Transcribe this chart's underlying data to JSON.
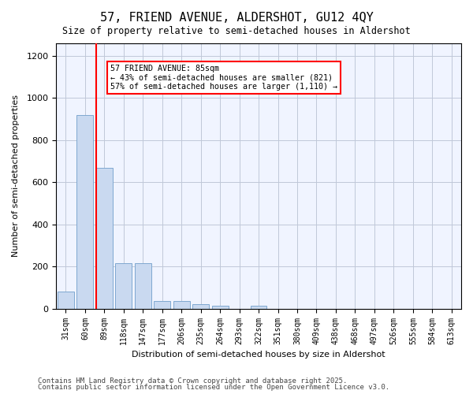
{
  "title_line1": "57, FRIEND AVENUE, ALDERSHOT, GU12 4QY",
  "title_line2": "Size of property relative to semi-detached houses in Aldershot",
  "xlabel": "Distribution of semi-detached houses by size in Aldershot",
  "ylabel": "Number of semi-detached properties",
  "categories": [
    "31sqm",
    "60sqm",
    "89sqm",
    "118sqm",
    "147sqm",
    "177sqm",
    "206sqm",
    "235sqm",
    "264sqm",
    "293sqm",
    "322sqm",
    "351sqm",
    "380sqm",
    "409sqm",
    "438sqm",
    "468sqm",
    "497sqm",
    "526sqm",
    "555sqm",
    "584sqm",
    "613sqm"
  ],
  "values": [
    80,
    920,
    670,
    215,
    215,
    35,
    35,
    20,
    13,
    0,
    13,
    0,
    0,
    0,
    0,
    0,
    0,
    0,
    0,
    0,
    0
  ],
  "bar_color": "#c9d9f0",
  "bar_edge_color": "#7fa8d0",
  "red_line_x": 2,
  "property_size": "85sqm",
  "pct_smaller": 43,
  "count_smaller": 821,
  "pct_larger": 57,
  "count_larger": 1110,
  "annotation_text": "57 FRIEND AVENUE: 85sqm\n← 43% of semi-detached houses are smaller (821)\n57% of semi-detached houses are larger (1,110) →",
  "ylim": [
    0,
    1260
  ],
  "yticks": [
    0,
    200,
    400,
    600,
    800,
    1000,
    1200
  ],
  "footer_line1": "Contains HM Land Registry data © Crown copyright and database right 2025.",
  "footer_line2": "Contains public sector information licensed under the Open Government Licence v3.0.",
  "bg_color": "#f0f4ff",
  "grid_color": "#c0c8d8"
}
